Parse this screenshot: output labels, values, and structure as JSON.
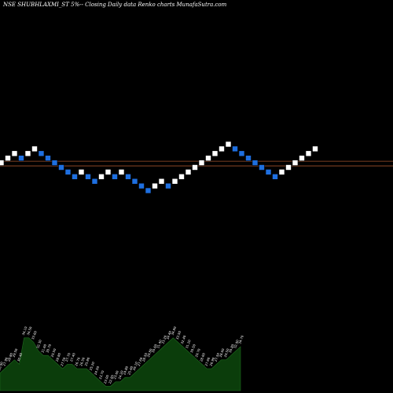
{
  "header": {
    "title": "NSE SHUBHLAXMI_ST 5%-- Closing Daily data  Renko  charts MunafaSutra.com"
  },
  "colors": {
    "background": "#000000",
    "up_brick": "#ffffff",
    "down_brick": "#1e6fe0",
    "support_line": "#a0522d",
    "volume_fill": "#0b3d0b",
    "volume_label": "#ffffff"
  },
  "chart_data": {
    "type": "renko",
    "bricks": [
      {
        "dir": "up",
        "level": 6
      },
      {
        "dir": "up",
        "level": 7
      },
      {
        "dir": "up",
        "level": 8
      },
      {
        "dir": "down",
        "level": 7
      },
      {
        "dir": "up",
        "level": 8
      },
      {
        "dir": "up",
        "level": 9
      },
      {
        "dir": "down",
        "level": 8
      },
      {
        "dir": "down",
        "level": 7
      },
      {
        "dir": "down",
        "level": 6
      },
      {
        "dir": "down",
        "level": 5
      },
      {
        "dir": "down",
        "level": 4
      },
      {
        "dir": "down",
        "level": 3
      },
      {
        "dir": "up",
        "level": 4
      },
      {
        "dir": "down",
        "level": 3
      },
      {
        "dir": "down",
        "level": 2
      },
      {
        "dir": "up",
        "level": 3
      },
      {
        "dir": "up",
        "level": 4
      },
      {
        "dir": "down",
        "level": 3
      },
      {
        "dir": "up",
        "level": 4
      },
      {
        "dir": "down",
        "level": 3
      },
      {
        "dir": "down",
        "level": 2
      },
      {
        "dir": "down",
        "level": 1
      },
      {
        "dir": "down",
        "level": 0
      },
      {
        "dir": "up",
        "level": 1
      },
      {
        "dir": "up",
        "level": 2
      },
      {
        "dir": "down",
        "level": 1
      },
      {
        "dir": "up",
        "level": 2
      },
      {
        "dir": "up",
        "level": 3
      },
      {
        "dir": "up",
        "level": 4
      },
      {
        "dir": "up",
        "level": 5
      },
      {
        "dir": "up",
        "level": 6
      },
      {
        "dir": "up",
        "level": 7
      },
      {
        "dir": "up",
        "level": 8
      },
      {
        "dir": "up",
        "level": 9
      },
      {
        "dir": "up",
        "level": 10
      },
      {
        "dir": "down",
        "level": 9
      },
      {
        "dir": "down",
        "level": 8
      },
      {
        "dir": "down",
        "level": 7
      },
      {
        "dir": "down",
        "level": 6
      },
      {
        "dir": "down",
        "level": 5
      },
      {
        "dir": "down",
        "level": 4
      },
      {
        "dir": "down",
        "level": 3
      },
      {
        "dir": "up",
        "level": 4
      },
      {
        "dir": "up",
        "level": 5
      },
      {
        "dir": "up",
        "level": 6
      },
      {
        "dir": "up",
        "level": 7
      },
      {
        "dir": "up",
        "level": 8
      },
      {
        "dir": "up",
        "level": 9
      }
    ],
    "support_levels": [
      6.5,
      5.5
    ],
    "volume": {
      "values": [
        4,
        5,
        6,
        7,
        6,
        12,
        12,
        11,
        9,
        8,
        8,
        7,
        6,
        5,
        6,
        6,
        5,
        5,
        5,
        4,
        3,
        2,
        1,
        1,
        2,
        2,
        3,
        3,
        4,
        5,
        6,
        7,
        8,
        9,
        10,
        11,
        12,
        11,
        10,
        9,
        8,
        7,
        6,
        5,
        5,
        6,
        7,
        7,
        8,
        9,
        10
      ],
      "labels": [
        "26.90",
        "27.90",
        "28.80",
        "29.50",
        "30.40",
        "34.10",
        "34.50",
        "33.60",
        "32.30",
        "31.60",
        "30.70",
        "29.50",
        "28.80",
        "27.50",
        "27.70",
        "27.40",
        "26.70",
        "26.50",
        "25.80",
        "25.20",
        "24.50",
        "23.70",
        "23.00",
        "22.80",
        "23.60",
        "24.20",
        "24.80",
        "25.40",
        "26.10",
        "27.60",
        "28.50",
        "29.80",
        "30.60",
        "31.40",
        "33.20",
        "34.40",
        "34.80",
        "33.50",
        "32.40",
        "31.20",
        "30.50",
        "29.70",
        "28.60",
        "27.60",
        "26.90",
        "27.50",
        "28.60",
        "29.50",
        "30.80",
        "32.90",
        "34.70"
      ]
    }
  }
}
